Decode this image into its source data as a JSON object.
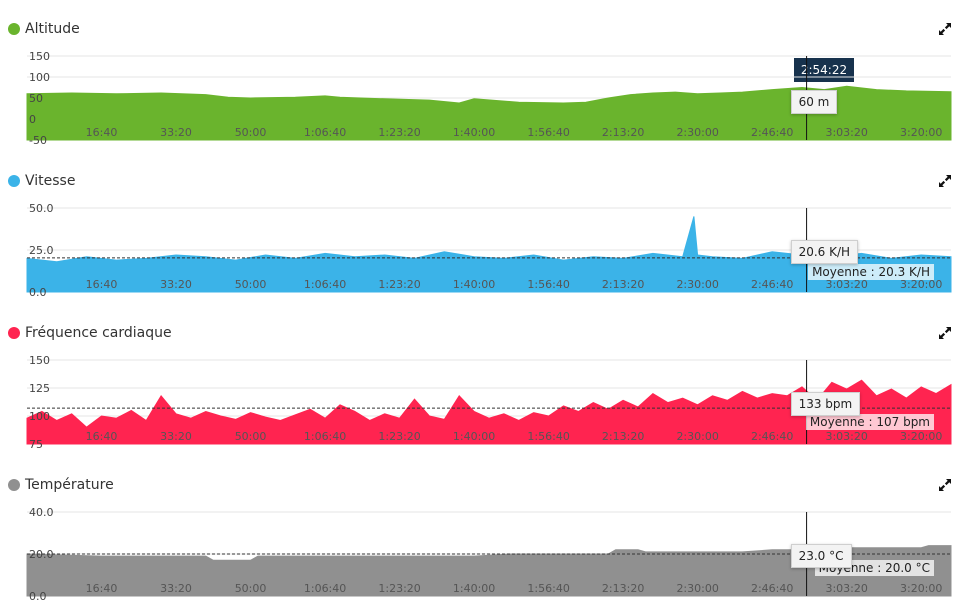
{
  "cursor": {
    "time_label": "2:54:22",
    "x_time": 10462
  },
  "x_ticks": [
    {
      "t": 1000,
      "label": "16:40"
    },
    {
      "t": 2000,
      "label": "33:20"
    },
    {
      "t": 3000,
      "label": "50:00"
    },
    {
      "t": 4000,
      "label": "1:06:40"
    },
    {
      "t": 5000,
      "label": "1:23:20"
    },
    {
      "t": 6000,
      "label": "1:40:00"
    },
    {
      "t": 7000,
      "label": "1:56:40"
    },
    {
      "t": 8000,
      "label": "2:13:20"
    },
    {
      "t": 9000,
      "label": "2:30:00"
    },
    {
      "t": 10000,
      "label": "2:46:40"
    },
    {
      "t": 11000,
      "label": "3:03:20"
    },
    {
      "t": 12000,
      "label": "3:20:00"
    }
  ],
  "chart_data": [
    {
      "type": "area",
      "title": "Altitude",
      "color": "#6ab42d",
      "x_unit": "seconds",
      "xlim": [
        0,
        12400
      ],
      "ylim": [
        -50,
        150
      ],
      "y_ticks": [
        {
          "v": 150,
          "label": "150"
        },
        {
          "v": 100,
          "label": "100"
        },
        {
          "v": 50,
          "label": "50"
        },
        {
          "v": 0,
          "label": "0"
        },
        {
          "v": -50,
          "label": "-50"
        }
      ],
      "average": null,
      "average_label": "",
      "tooltip": "60 m",
      "x": [
        0,
        600,
        1200,
        1800,
        2400,
        2700,
        3000,
        3600,
        4000,
        4200,
        4800,
        5400,
        5800,
        6000,
        6600,
        7200,
        7500,
        7800,
        8100,
        8400,
        8700,
        9000,
        9300,
        9600,
        10000,
        10400,
        10700,
        11000,
        11400,
        11800,
        12400
      ],
      "values": [
        60,
        62,
        60,
        62,
        58,
        52,
        50,
        52,
        55,
        52,
        48,
        45,
        38,
        48,
        40,
        38,
        40,
        50,
        58,
        62,
        64,
        60,
        62,
        64,
        70,
        75,
        70,
        78,
        70,
        67,
        65
      ]
    },
    {
      "type": "area",
      "title": "Vitesse",
      "color": "#3bb3e8",
      "x_unit": "seconds",
      "xlim": [
        0,
        12400
      ],
      "ylim": [
        0,
        50
      ],
      "y_ticks": [
        {
          "v": 50,
          "label": "50.0"
        },
        {
          "v": 25,
          "label": "25.0"
        },
        {
          "v": 0,
          "label": "0.0"
        }
      ],
      "average": 20.3,
      "average_label": "Moyenne : 20.3 K/H",
      "tooltip": "20.6 K/H",
      "x": [
        0,
        400,
        800,
        1200,
        1600,
        2000,
        2400,
        2800,
        3200,
        3600,
        4000,
        4400,
        4800,
        5200,
        5600,
        6000,
        6400,
        6800,
        7200,
        7600,
        8000,
        8400,
        8800,
        8950,
        9000,
        9200,
        9600,
        10000,
        10400,
        10800,
        11200,
        11600,
        12000,
        12400
      ],
      "values": [
        20,
        18,
        21,
        19,
        20,
        22,
        21,
        19,
        22,
        20,
        23,
        21,
        22,
        20,
        24,
        21,
        20,
        22,
        19,
        21,
        20,
        23,
        21,
        45,
        22,
        21,
        20,
        24,
        22,
        21,
        23,
        20,
        22,
        21
      ]
    },
    {
      "type": "area",
      "title": "Fréquence cardiaque",
      "color": "#ff2450",
      "x_unit": "seconds",
      "xlim": [
        0,
        12400
      ],
      "ylim": [
        75,
        150
      ],
      "y_ticks": [
        {
          "v": 150,
          "label": "150"
        },
        {
          "v": 125,
          "label": "125"
        },
        {
          "v": 100,
          "label": "100"
        },
        {
          "v": 75,
          "label": "75"
        }
      ],
      "average": 107,
      "average_label": "Moyenne : 107 bpm",
      "tooltip": "133 bpm",
      "x": [
        0,
        200,
        400,
        600,
        800,
        1000,
        1200,
        1400,
        1600,
        1800,
        2000,
        2200,
        2400,
        2600,
        2800,
        3000,
        3200,
        3400,
        3600,
        3800,
        4000,
        4200,
        4400,
        4600,
        4800,
        5000,
        5200,
        5400,
        5600,
        5800,
        6000,
        6200,
        6400,
        6600,
        6800,
        7000,
        7200,
        7400,
        7600,
        7800,
        8000,
        8200,
        8400,
        8600,
        8800,
        9000,
        9200,
        9400,
        9600,
        9800,
        10000,
        10200,
        10400,
        10600,
        10800,
        11000,
        11200,
        11400,
        11600,
        11800,
        12000,
        12200,
        12400
      ],
      "values": [
        98,
        104,
        96,
        102,
        90,
        100,
        98,
        105,
        96,
        118,
        102,
        98,
        104,
        100,
        97,
        103,
        99,
        96,
        101,
        106,
        98,
        110,
        104,
        96,
        102,
        98,
        115,
        100,
        97,
        118,
        104,
        98,
        102,
        96,
        103,
        100,
        109,
        104,
        112,
        106,
        114,
        108,
        120,
        112,
        116,
        110,
        118,
        114,
        122,
        116,
        120,
        118,
        126,
        114,
        130,
        124,
        132,
        118,
        124,
        116,
        126,
        120,
        128
      ]
    },
    {
      "type": "area",
      "title": "Température",
      "color": "#909090",
      "x_unit": "seconds",
      "xlim": [
        0,
        12400
      ],
      "ylim": [
        0,
        40
      ],
      "y_ticks": [
        {
          "v": 40,
          "label": "40.0"
        },
        {
          "v": 20,
          "label": "20.0"
        },
        {
          "v": 0,
          "label": "0.0"
        }
      ],
      "average": 20.0,
      "average_label": "Moyenne : 20.0 °C",
      "tooltip": "23.0 °C",
      "x": [
        0,
        1000,
        2000,
        2400,
        2500,
        3000,
        3100,
        3800,
        4800,
        5500,
        6000,
        6500,
        7000,
        7200,
        7500,
        7800,
        7900,
        8200,
        8300,
        9000,
        9100,
        9600,
        10000,
        10500,
        11000,
        11500,
        11800,
        12000,
        12100,
        12400
      ],
      "values": [
        20,
        19,
        19,
        19,
        17,
        17,
        19,
        19,
        19,
        19,
        19,
        20,
        20,
        20,
        20,
        20,
        22,
        22,
        21,
        21,
        21,
        21,
        22,
        22,
        23,
        23,
        23,
        23,
        24,
        24
      ]
    }
  ]
}
